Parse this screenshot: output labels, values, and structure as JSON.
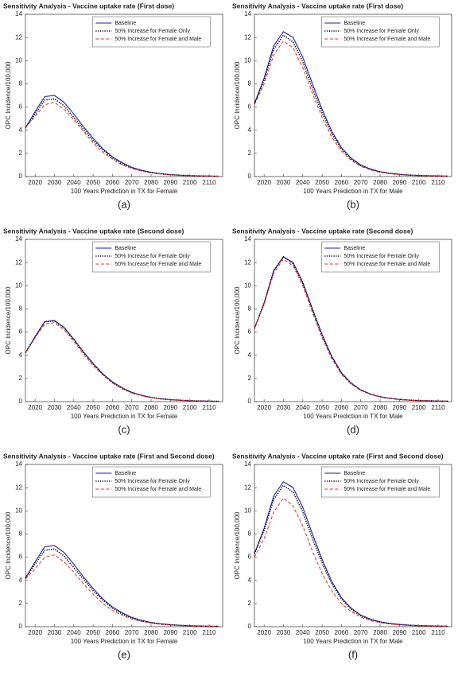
{
  "chart_data": [
    {
      "type": "line",
      "title": "Sensitivity Analysis - Vaccine uptake rate (First dose)",
      "xlabel": "100 Years Prediction in TX for Female",
      "ylabel": "OPC Incidence/100,000",
      "caption": "(a)",
      "x": [
        2015,
        2020,
        2025,
        2030,
        2035,
        2040,
        2045,
        2050,
        2055,
        2060,
        2065,
        2070,
        2075,
        2080,
        2085,
        2090,
        2095,
        2100,
        2105,
        2110,
        2115
      ],
      "series": [
        {
          "name": "Baseline",
          "color": "#1f1f9e",
          "linestyle": "solid",
          "values": [
            4.2,
            5.6,
            6.9,
            7.0,
            6.4,
            5.4,
            4.3,
            3.3,
            2.4,
            1.7,
            1.2,
            0.8,
            0.55,
            0.37,
            0.25,
            0.17,
            0.12,
            0.08,
            0.06,
            0.04,
            0.03
          ]
        },
        {
          "name": "50% Increase for Female Only",
          "color": "#000000",
          "linestyle": "dotted",
          "values": [
            4.2,
            5.4,
            6.6,
            6.7,
            6.1,
            5.1,
            4.1,
            3.1,
            2.3,
            1.6,
            1.1,
            0.75,
            0.5,
            0.34,
            0.23,
            0.16,
            0.11,
            0.08,
            0.05,
            0.04,
            0.03
          ]
        },
        {
          "name": "50% Increase for Female and Male",
          "color": "#e0302a",
          "linestyle": "dashed",
          "values": [
            4.2,
            5.2,
            6.2,
            6.4,
            5.8,
            4.9,
            3.9,
            2.9,
            2.1,
            1.5,
            1.0,
            0.7,
            0.47,
            0.32,
            0.22,
            0.15,
            0.1,
            0.07,
            0.05,
            0.04,
            0.03
          ]
        }
      ],
      "xlim": [
        2015,
        2117
      ],
      "xticks": [
        2020,
        2030,
        2040,
        2050,
        2060,
        2070,
        2080,
        2090,
        2100,
        2110
      ],
      "ylim": [
        0,
        14
      ],
      "yticks": [
        0,
        2,
        4,
        6,
        8,
        10,
        12,
        14
      ],
      "grid": false,
      "legend": "upper center"
    },
    {
      "type": "line",
      "title": "Sensitivity Analysis - Vaccine uptake rate (First dose)",
      "xlabel": "100 Years Prediction in TX for Male",
      "ylabel": "OPC Incidence/100,000",
      "caption": "(b)",
      "x": [
        2015,
        2020,
        2025,
        2030,
        2035,
        2040,
        2045,
        2050,
        2055,
        2060,
        2065,
        2070,
        2075,
        2080,
        2085,
        2090,
        2095,
        2100,
        2105,
        2110,
        2115
      ],
      "series": [
        {
          "name": "Baseline",
          "color": "#1f1f9e",
          "linestyle": "solid",
          "values": [
            6.3,
            8.5,
            11.3,
            12.5,
            12.0,
            10.3,
            8.0,
            5.8,
            3.9,
            2.5,
            1.6,
            1.0,
            0.65,
            0.42,
            0.28,
            0.19,
            0.13,
            0.09,
            0.07,
            0.05,
            0.04
          ]
        },
        {
          "name": "50% Increase for Female Only",
          "color": "#000000",
          "linestyle": "dotted",
          "values": [
            6.3,
            8.3,
            11.0,
            12.2,
            11.6,
            9.9,
            7.6,
            5.5,
            3.7,
            2.4,
            1.5,
            0.95,
            0.62,
            0.4,
            0.27,
            0.18,
            0.12,
            0.09,
            0.06,
            0.05,
            0.04
          ]
        },
        {
          "name": "50% Increase for Female and Male",
          "color": "#e0302a",
          "linestyle": "dashed",
          "values": [
            6.2,
            8.0,
            10.5,
            11.7,
            11.1,
            9.4,
            7.2,
            5.1,
            3.4,
            2.2,
            1.4,
            0.88,
            0.57,
            0.37,
            0.25,
            0.17,
            0.11,
            0.08,
            0.06,
            0.04,
            0.03
          ]
        }
      ],
      "xlim": [
        2015,
        2117
      ],
      "xticks": [
        2020,
        2030,
        2040,
        2050,
        2060,
        2070,
        2080,
        2090,
        2100,
        2110
      ],
      "ylim": [
        0,
        14
      ],
      "yticks": [
        0,
        2,
        4,
        6,
        8,
        10,
        12,
        14
      ],
      "grid": false,
      "legend": "upper center"
    },
    {
      "type": "line",
      "title": "Sensitivity Analysis - Vaccine uptake rate (Second dose)",
      "xlabel": "100 Years Prediction in TX for Female",
      "ylabel": "OPC Incidence/100,000",
      "caption": "(c)",
      "x": [
        2015,
        2020,
        2025,
        2030,
        2035,
        2040,
        2045,
        2050,
        2055,
        2060,
        2065,
        2070,
        2075,
        2080,
        2085,
        2090,
        2095,
        2100,
        2105,
        2110,
        2115
      ],
      "series": [
        {
          "name": "Baseline",
          "color": "#1f1f9e",
          "linestyle": "solid",
          "values": [
            4.2,
            5.6,
            6.9,
            7.0,
            6.4,
            5.4,
            4.3,
            3.3,
            2.4,
            1.7,
            1.2,
            0.8,
            0.55,
            0.37,
            0.25,
            0.17,
            0.12,
            0.08,
            0.06,
            0.04,
            0.03
          ]
        },
        {
          "name": "50% Increase for Female Only",
          "color": "#000000",
          "linestyle": "dotted",
          "values": [
            4.2,
            5.6,
            6.9,
            6.95,
            6.35,
            5.35,
            4.25,
            3.25,
            2.35,
            1.65,
            1.15,
            0.78,
            0.53,
            0.36,
            0.24,
            0.17,
            0.12,
            0.08,
            0.06,
            0.04,
            0.03
          ]
        },
        {
          "name": "50% Increase for Female and Male",
          "color": "#e0302a",
          "linestyle": "dashed",
          "values": [
            4.2,
            5.5,
            6.7,
            6.8,
            6.2,
            5.2,
            4.1,
            3.1,
            2.3,
            1.6,
            1.1,
            0.75,
            0.51,
            0.35,
            0.23,
            0.16,
            0.11,
            0.08,
            0.05,
            0.04,
            0.03
          ]
        }
      ],
      "xlim": [
        2015,
        2117
      ],
      "xticks": [
        2020,
        2030,
        2040,
        2050,
        2060,
        2070,
        2080,
        2090,
        2100,
        2110
      ],
      "ylim": [
        0,
        14
      ],
      "yticks": [
        0,
        2,
        4,
        6,
        8,
        10,
        12,
        14
      ],
      "grid": false,
      "legend": "upper center"
    },
    {
      "type": "line",
      "title": "Sensitivity Analysis - Vaccine uptake rate (Second dose)",
      "xlabel": "100 Years Prediction in TX for Male",
      "ylabel": "OPC Incidence/100,000",
      "caption": "(d)",
      "x": [
        2015,
        2020,
        2025,
        2030,
        2035,
        2040,
        2045,
        2050,
        2055,
        2060,
        2065,
        2070,
        2075,
        2080,
        2085,
        2090,
        2095,
        2100,
        2105,
        2110,
        2115
      ],
      "series": [
        {
          "name": "Baseline",
          "color": "#1f1f9e",
          "linestyle": "solid",
          "values": [
            6.3,
            8.5,
            11.3,
            12.5,
            12.0,
            10.3,
            8.0,
            5.8,
            3.9,
            2.5,
            1.6,
            1.0,
            0.65,
            0.42,
            0.28,
            0.19,
            0.13,
            0.09,
            0.07,
            0.05,
            0.04
          ]
        },
        {
          "name": "50% Increase for Female Only",
          "color": "#000000",
          "linestyle": "dotted",
          "values": [
            6.3,
            8.5,
            11.3,
            12.5,
            11.9,
            10.2,
            7.9,
            5.7,
            3.85,
            2.45,
            1.58,
            1.0,
            0.64,
            0.42,
            0.28,
            0.19,
            0.13,
            0.09,
            0.07,
            0.05,
            0.04
          ]
        },
        {
          "name": "50% Increase for Female and Male",
          "color": "#e0302a",
          "linestyle": "dashed",
          "values": [
            6.3,
            8.4,
            11.1,
            12.3,
            11.7,
            10.0,
            7.7,
            5.5,
            3.7,
            2.35,
            1.52,
            0.96,
            0.62,
            0.4,
            0.27,
            0.18,
            0.12,
            0.09,
            0.06,
            0.05,
            0.04
          ]
        }
      ],
      "xlim": [
        2015,
        2117
      ],
      "xticks": [
        2020,
        2030,
        2040,
        2050,
        2060,
        2070,
        2080,
        2090,
        2100,
        2110
      ],
      "ylim": [
        0,
        14
      ],
      "yticks": [
        0,
        2,
        4,
        6,
        8,
        10,
        12,
        14
      ],
      "grid": false,
      "legend": "upper center"
    },
    {
      "type": "line",
      "title": "Sensitivity Analysis - Vaccine uptake rate (First and Second dose)",
      "xlabel": "100 Years Prediction in TX for Female",
      "ylabel": "OPC Incidence/100,000",
      "caption": "(e)",
      "x": [
        2015,
        2020,
        2025,
        2030,
        2035,
        2040,
        2045,
        2050,
        2055,
        2060,
        2065,
        2070,
        2075,
        2080,
        2085,
        2090,
        2095,
        2100,
        2105,
        2110,
        2115
      ],
      "series": [
        {
          "name": "Baseline",
          "color": "#1f1f9e",
          "linestyle": "solid",
          "values": [
            4.2,
            5.6,
            6.9,
            7.0,
            6.4,
            5.4,
            4.3,
            3.3,
            2.4,
            1.7,
            1.2,
            0.8,
            0.55,
            0.37,
            0.25,
            0.17,
            0.12,
            0.08,
            0.06,
            0.04,
            0.03
          ]
        },
        {
          "name": "50% Increase for Female Only",
          "color": "#000000",
          "linestyle": "dotted",
          "values": [
            4.2,
            5.4,
            6.6,
            6.7,
            6.1,
            5.1,
            4.1,
            3.1,
            2.3,
            1.6,
            1.1,
            0.75,
            0.5,
            0.34,
            0.23,
            0.16,
            0.11,
            0.08,
            0.05,
            0.04,
            0.03
          ]
        },
        {
          "name": "50% Increase for Female and Male",
          "color": "#e0302a",
          "linestyle": "dashed",
          "values": [
            4.1,
            5.0,
            6.0,
            6.2,
            5.6,
            4.7,
            3.7,
            2.8,
            2.0,
            1.4,
            1.0,
            0.67,
            0.45,
            0.31,
            0.21,
            0.14,
            0.1,
            0.07,
            0.05,
            0.03,
            0.02
          ]
        }
      ],
      "xlim": [
        2015,
        2117
      ],
      "xticks": [
        2020,
        2030,
        2040,
        2050,
        2060,
        2070,
        2080,
        2090,
        2100,
        2110
      ],
      "ylim": [
        0,
        14
      ],
      "yticks": [
        0,
        2,
        4,
        6,
        8,
        10,
        12,
        14
      ],
      "grid": false,
      "legend": "upper center"
    },
    {
      "type": "line",
      "title": "Sensitivity Analysis - Vaccine uptake rate (First and Second dose)",
      "xlabel": "100 Years Prediction in TX for Male",
      "ylabel": "OPC Incidence/100,000",
      "caption": "(f)",
      "x": [
        2015,
        2020,
        2025,
        2030,
        2035,
        2040,
        2045,
        2050,
        2055,
        2060,
        2065,
        2070,
        2075,
        2080,
        2085,
        2090,
        2095,
        2100,
        2105,
        2110,
        2115
      ],
      "series": [
        {
          "name": "Baseline",
          "color": "#1f1f9e",
          "linestyle": "solid",
          "values": [
            6.3,
            8.5,
            11.3,
            12.5,
            12.0,
            10.3,
            8.0,
            5.8,
            3.9,
            2.5,
            1.6,
            1.0,
            0.65,
            0.42,
            0.28,
            0.19,
            0.13,
            0.09,
            0.07,
            0.05,
            0.04
          ]
        },
        {
          "name": "50% Increase for Female Only",
          "color": "#000000",
          "linestyle": "dotted",
          "values": [
            6.3,
            8.3,
            11.0,
            12.2,
            11.6,
            9.9,
            7.6,
            5.5,
            3.7,
            2.4,
            1.5,
            0.95,
            0.62,
            0.4,
            0.27,
            0.18,
            0.12,
            0.09,
            0.06,
            0.05,
            0.04
          ]
        },
        {
          "name": "50% Increase for Female and Male",
          "color": "#e0302a",
          "linestyle": "dashed",
          "values": [
            6.0,
            7.6,
            9.9,
            11.1,
            10.4,
            8.7,
            6.5,
            4.6,
            3.1,
            2.0,
            1.3,
            0.82,
            0.53,
            0.35,
            0.23,
            0.16,
            0.11,
            0.08,
            0.05,
            0.04,
            0.03
          ]
        }
      ],
      "xlim": [
        2015,
        2117
      ],
      "xticks": [
        2020,
        2030,
        2040,
        2050,
        2060,
        2070,
        2080,
        2090,
        2100,
        2110
      ],
      "ylim": [
        0,
        14
      ],
      "yticks": [
        0,
        2,
        4,
        6,
        8,
        10,
        12,
        14
      ],
      "grid": false,
      "legend": "upper center"
    }
  ]
}
